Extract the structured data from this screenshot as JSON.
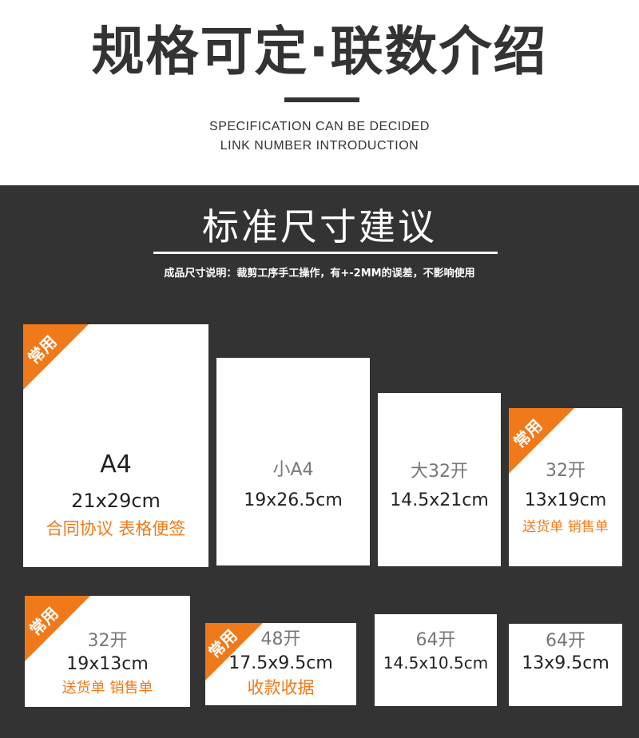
{
  "header": {
    "title": "规格可定·联数介绍",
    "subtitle_line1": "SPECIFICATION CAN BE DECIDED",
    "subtitle_line2": "LINK NUMBER INTRODUCTION"
  },
  "section": {
    "title": "标准尺寸建议",
    "note": "成品尺寸说明：裁剪工序手工操作，有+-2MM的误差，不影响使用"
  },
  "badge_label": "常用",
  "colors": {
    "accent": "#f07a1a",
    "dark_bg": "#333333"
  },
  "cards": [
    {
      "label": "A4",
      "size": "21x29cm",
      "uses": "合同协议 表格便签",
      "common": true
    },
    {
      "label": "小A4",
      "size": "19x26.5cm",
      "common": false
    },
    {
      "label": "大32开",
      "size": "14.5x21cm",
      "common": false
    },
    {
      "label": "32开",
      "size": "13x19cm",
      "uses": "送货单 销售单",
      "common": true
    },
    {
      "label": "32开",
      "size": "19x13cm",
      "uses": "送货单 销售单",
      "common": true
    },
    {
      "label": "48开",
      "size": "17.5x9.5cm",
      "uses": "收款收据",
      "common": true
    },
    {
      "label": "64开",
      "size": "14.5x10.5cm",
      "common": false
    },
    {
      "label": "64开",
      "size": "13x9.5cm",
      "common": false
    }
  ]
}
